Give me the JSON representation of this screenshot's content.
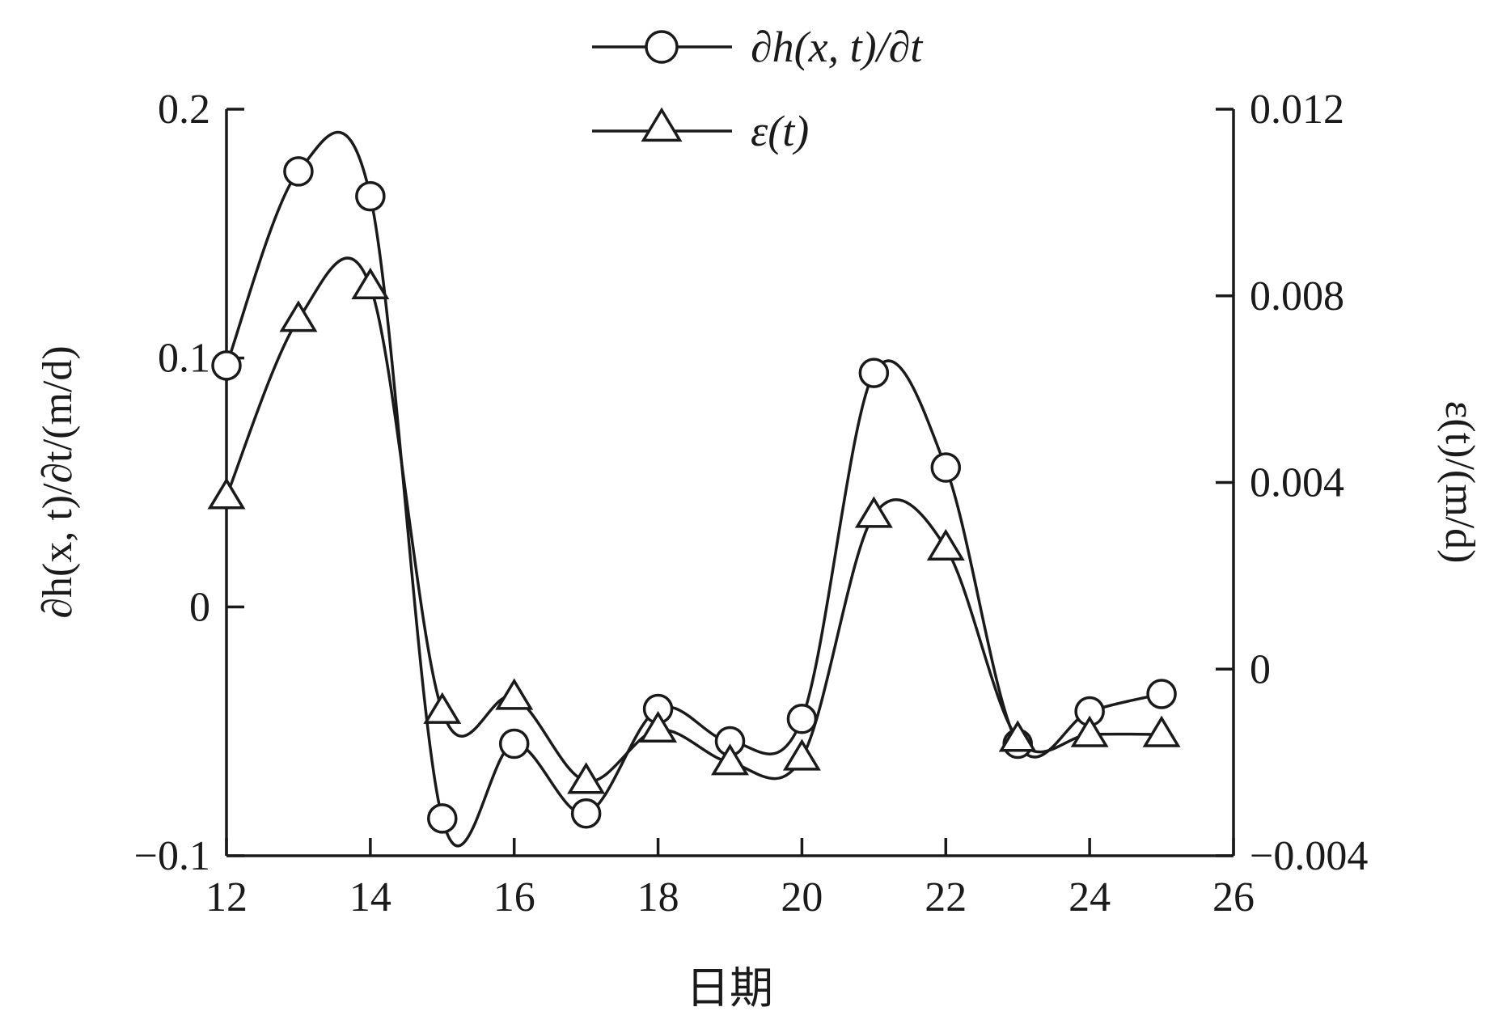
{
  "chart_data": {
    "type": "line",
    "xlabel": "日期",
    "ylabel_left": "∂h(x, t)/∂t/(m/d)",
    "ylabel_right": "ε(t)/(m/d)",
    "xlim": [
      12,
      26
    ],
    "ylim_left": [
      -0.1,
      0.2
    ],
    "ylim_right": [
      -0.004,
      0.012
    ],
    "x_ticks": [
      "12",
      "14",
      "16",
      "18",
      "20",
      "22",
      "24",
      "26"
    ],
    "y_left_ticks": [
      "−0.1",
      "0",
      "0.1",
      "0.2"
    ],
    "y_right_ticks": [
      "−0.004",
      "0",
      "0.004",
      "0.008",
      "0.012"
    ],
    "grid": false,
    "legend_position": "top-center",
    "series": [
      {
        "name": "∂h(x, t)/∂t",
        "marker": "circle",
        "axis": "left",
        "x": [
          12,
          13,
          14,
          15,
          16,
          17,
          18,
          19,
          20,
          21,
          22,
          23,
          24,
          25
        ],
        "values": [
          0.097,
          0.175,
          0.165,
          -0.085,
          -0.055,
          -0.083,
          -0.041,
          -0.054,
          -0.045,
          0.094,
          0.056,
          -0.055,
          -0.042,
          -0.035
        ]
      },
      {
        "name": "ε(t)",
        "marker": "triangle",
        "axis": "right",
        "x": [
          12,
          13,
          14,
          15,
          16,
          17,
          18,
          19,
          20,
          21,
          22,
          23,
          24,
          25
        ],
        "values": [
          0.0037,
          0.0075,
          0.0082,
          -0.0009,
          -0.0006,
          -0.0024,
          -0.0013,
          -0.002,
          -0.0019,
          0.0033,
          0.0026,
          -0.0015,
          -0.0014,
          -0.0014
        ]
      }
    ]
  }
}
